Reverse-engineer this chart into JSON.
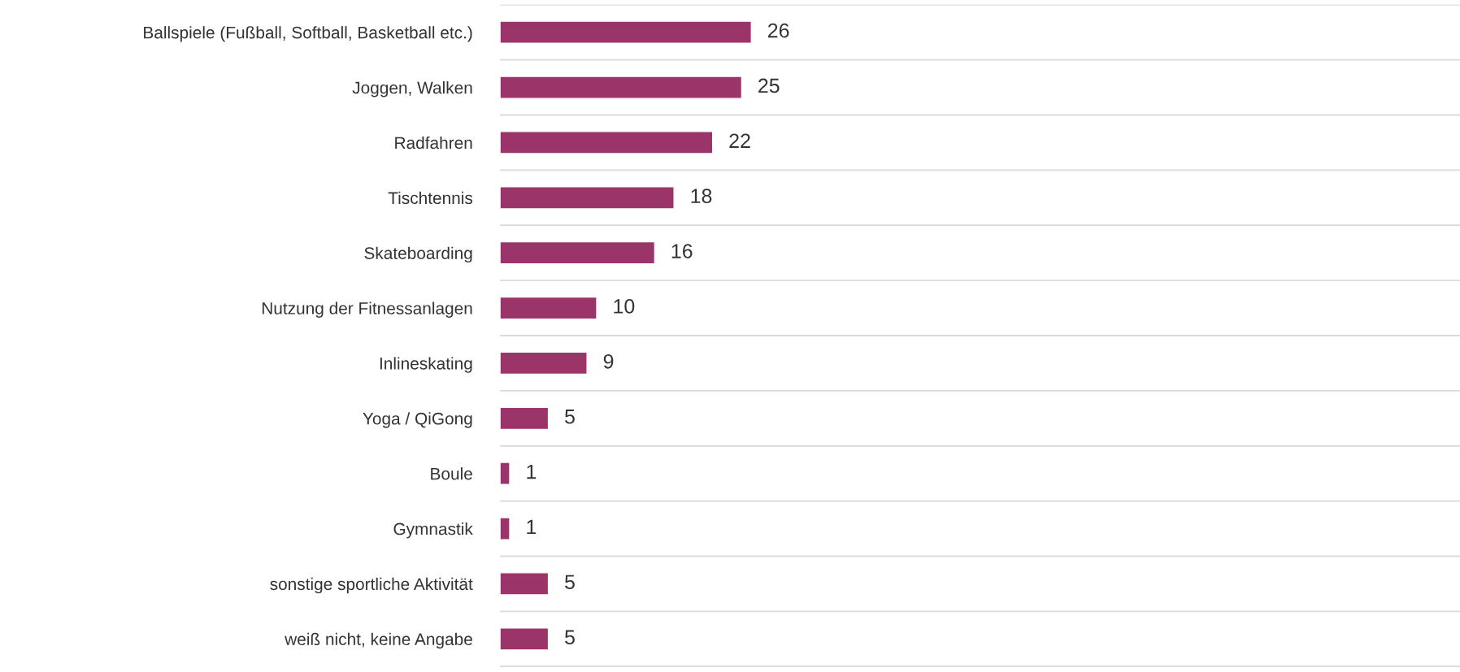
{
  "chart_data": {
    "type": "bar",
    "orientation": "horizontal",
    "categories": [
      "Ballspiele (Fußball, Softball, Basketball etc.)",
      "Joggen, Walken",
      "Radfahren",
      "Tischtennis",
      "Skateboarding",
      "Nutzung der Fitnessanlagen",
      "Inlineskating",
      "Yoga / QiGong",
      "Boule",
      "Gymnastik",
      "sonstige sportliche Aktivität",
      "weiß nicht, keine Angabe"
    ],
    "values": [
      26,
      25,
      22,
      18,
      16,
      10,
      9,
      5,
      1,
      1,
      5,
      5
    ],
    "color": "#9b3468",
    "data_labels": true,
    "grid": "y",
    "tick_labels": "y",
    "legend": false
  }
}
